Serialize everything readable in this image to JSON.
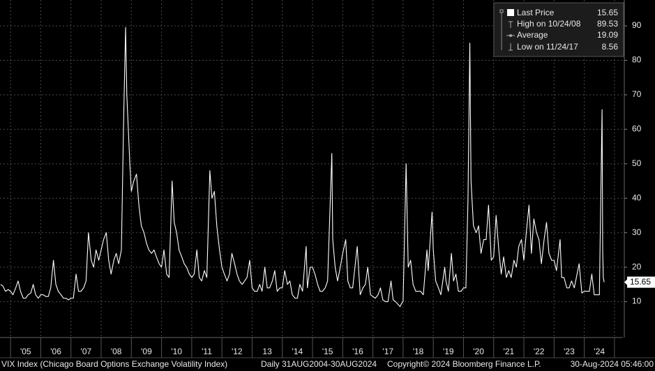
{
  "chart_data": {
    "type": "line",
    "color": "#ffffff",
    "xlim": [
      2004.65,
      2025.28
    ],
    "ylim": [
      0,
      97.5
    ],
    "yticks": [
      10,
      20,
      30,
      40,
      50,
      60,
      70,
      80,
      90
    ],
    "xgrid": [
      2005,
      2006,
      2007,
      2008,
      2009,
      2010,
      2011,
      2012,
      2013,
      2014,
      2015,
      2016,
      2017,
      2018,
      2019,
      2020,
      2021,
      2022,
      2023,
      2024,
      2025
    ],
    "xticks": [
      {
        "value": 2005.5,
        "label": "'05"
      },
      {
        "value": 2006.5,
        "label": "'06"
      },
      {
        "value": 2007.5,
        "label": "'07"
      },
      {
        "value": 2008.5,
        "label": "'08"
      },
      {
        "value": 2009.5,
        "label": "'09"
      },
      {
        "value": 2010.5,
        "label": "'10"
      },
      {
        "value": 2011.5,
        "label": "'11"
      },
      {
        "value": 2012.5,
        "label": "'12"
      },
      {
        "value": 2013.5,
        "label": "13"
      },
      {
        "value": 2014.5,
        "label": "'14"
      },
      {
        "value": 2015.5,
        "label": "'15"
      },
      {
        "value": 2016.5,
        "label": "'16"
      },
      {
        "value": 2017.5,
        "label": "'17"
      },
      {
        "value": 2018.5,
        "label": "'18"
      },
      {
        "value": 2019.5,
        "label": "'19"
      },
      {
        "value": 2020.5,
        "label": "'20"
      },
      {
        "value": 2021.5,
        "label": "'21"
      },
      {
        "value": 2022.5,
        "label": "'22"
      },
      {
        "value": 2023.5,
        "label": "'23"
      },
      {
        "value": 2024.5,
        "label": "'24"
      }
    ],
    "grid": true,
    "legend": [
      {
        "label": "Last Price",
        "value": 15.65
      },
      {
        "label": "High on 10/24/08",
        "value": 89.53
      },
      {
        "label": "Average",
        "value": 19.09
      },
      {
        "label": "Low on 11/24/17",
        "value": 8.56
      }
    ],
    "footer": {
      "source": "VIX Index (Chicago Board Options Exchange Volatility Index)",
      "range": "Daily 31AUG2004-30AUG2024",
      "copyright": "Copyright© 2024 Bloomberg Finance L.P.",
      "timestamp": "30-Aug-2024 05:46:00"
    },
    "x": [
      2004.67,
      2004.75,
      2004.83,
      2004.92,
      2005.0,
      2005.08,
      2005.17,
      2005.25,
      2005.33,
      2005.42,
      2005.5,
      2005.58,
      2005.67,
      2005.75,
      2005.83,
      2005.92,
      2006.0,
      2006.08,
      2006.17,
      2006.25,
      2006.33,
      2006.42,
      2006.5,
      2006.58,
      2006.67,
      2006.75,
      2006.83,
      2006.92,
      2007.0,
      2007.08,
      2007.17,
      2007.25,
      2007.33,
      2007.42,
      2007.5,
      2007.58,
      2007.67,
      2007.75,
      2007.83,
      2007.92,
      2008.0,
      2008.08,
      2008.17,
      2008.25,
      2008.33,
      2008.42,
      2008.5,
      2008.58,
      2008.67,
      2008.75,
      2008.81,
      2008.85,
      2008.9,
      2008.95,
      2009.0,
      2009.08,
      2009.17,
      2009.25,
      2009.33,
      2009.42,
      2009.5,
      2009.58,
      2009.67,
      2009.75,
      2009.83,
      2009.92,
      2010.0,
      2010.08,
      2010.17,
      2010.25,
      2010.35,
      2010.42,
      2010.5,
      2010.58,
      2010.67,
      2010.75,
      2010.83,
      2010.92,
      2011.0,
      2011.08,
      2011.17,
      2011.25,
      2011.33,
      2011.42,
      2011.5,
      2011.6,
      2011.67,
      2011.75,
      2011.83,
      2011.92,
      2012.0,
      2012.08,
      2012.17,
      2012.25,
      2012.33,
      2012.42,
      2012.5,
      2012.58,
      2012.67,
      2012.75,
      2012.83,
      2012.92,
      2013.0,
      2013.08,
      2013.17,
      2013.25,
      2013.33,
      2013.42,
      2013.5,
      2013.58,
      2013.67,
      2013.75,
      2013.83,
      2013.92,
      2014.0,
      2014.08,
      2014.17,
      2014.25,
      2014.33,
      2014.42,
      2014.5,
      2014.58,
      2014.67,
      2014.79,
      2014.83,
      2014.92,
      2015.0,
      2015.08,
      2015.17,
      2015.25,
      2015.33,
      2015.42,
      2015.5,
      2015.64,
      2015.67,
      2015.75,
      2015.83,
      2015.92,
      2016.0,
      2016.1,
      2016.17,
      2016.25,
      2016.33,
      2016.48,
      2016.58,
      2016.67,
      2016.75,
      2016.83,
      2016.92,
      2017.0,
      2017.08,
      2017.17,
      2017.25,
      2017.33,
      2017.42,
      2017.5,
      2017.6,
      2017.67,
      2017.75,
      2017.9,
      2017.95,
      2018.0,
      2018.1,
      2018.17,
      2018.25,
      2018.33,
      2018.42,
      2018.5,
      2018.58,
      2018.67,
      2018.79,
      2018.83,
      2018.96,
      2019.0,
      2019.08,
      2019.17,
      2019.25,
      2019.38,
      2019.42,
      2019.5,
      2019.6,
      2019.67,
      2019.75,
      2019.83,
      2019.92,
      2020.0,
      2020.08,
      2020.15,
      2020.21,
      2020.25,
      2020.33,
      2020.42,
      2020.5,
      2020.58,
      2020.67,
      2020.75,
      2020.83,
      2020.92,
      2021.0,
      2021.08,
      2021.17,
      2021.25,
      2021.33,
      2021.42,
      2021.5,
      2021.58,
      2021.67,
      2021.75,
      2021.83,
      2021.92,
      2022.0,
      2022.08,
      2022.17,
      2022.25,
      2022.33,
      2022.42,
      2022.5,
      2022.58,
      2022.67,
      2022.75,
      2022.83,
      2022.92,
      2023.0,
      2023.08,
      2023.2,
      2023.25,
      2023.33,
      2023.42,
      2023.5,
      2023.58,
      2023.67,
      2023.83,
      2023.92,
      2024.0,
      2024.08,
      2024.17,
      2024.25,
      2024.33,
      2024.42,
      2024.5,
      2024.59,
      2024.61,
      2024.63,
      2024.66
    ],
    "values": [
      15,
      14.5,
      13,
      13.5,
      13,
      12,
      14,
      16,
      13,
      11,
      11,
      12,
      12.5,
      15,
      12,
      11,
      12,
      12,
      11.5,
      11.5,
      14,
      22,
      15,
      13,
      12,
      11,
      11,
      10.5,
      11,
      11,
      18,
      13,
      13,
      14,
      16,
      30,
      22,
      20,
      25,
      22,
      25,
      28,
      30,
      22,
      18,
      22,
      24,
      21,
      25,
      65,
      89.53,
      70,
      60,
      50,
      42,
      45,
      47,
      38,
      32,
      30,
      27,
      25,
      24,
      25,
      23,
      21,
      20,
      25,
      18,
      17,
      45,
      33,
      30,
      25,
      23,
      21,
      20,
      18,
      17,
      18,
      25,
      17,
      16,
      19,
      17,
      48,
      40,
      42,
      32,
      25,
      20,
      18,
      16,
      18,
      24,
      21,
      18,
      16,
      15,
      16,
      17,
      22,
      14,
      13,
      13,
      15,
      13,
      20,
      14,
      14,
      16,
      19,
      13,
      14,
      14,
      19,
      15,
      16,
      12,
      11,
      11,
      15,
      13,
      26,
      14,
      20,
      20,
      18,
      15,
      13,
      13,
      14,
      16,
      53,
      28,
      20,
      16,
      20,
      24,
      28,
      16,
      14,
      14,
      26,
      12,
      14,
      15,
      20,
      12,
      11.5,
      11,
      12,
      14,
      10.5,
      10,
      10,
      16,
      10.5,
      10,
      8.56,
      9.5,
      10,
      50,
      20,
      22,
      15,
      13,
      13,
      13,
      12,
      25,
      19,
      36,
      25,
      16,
      14,
      12,
      20,
      16,
      13,
      24,
      16,
      18,
      13,
      13,
      14,
      14,
      40,
      85,
      45,
      32,
      30,
      32,
      24,
      28,
      28,
      38,
      22,
      23,
      35,
      25,
      18,
      23,
      17,
      19,
      17,
      22,
      20,
      26,
      28,
      22,
      30,
      38,
      24,
      34,
      30,
      28,
      21,
      28,
      33,
      24,
      22,
      22,
      19,
      28,
      17,
      17,
      14,
      14,
      16,
      14,
      21,
      12.5,
      13,
      13,
      13,
      18,
      12,
      12,
      12,
      65.7,
      25,
      17,
      15.65
    ]
  }
}
